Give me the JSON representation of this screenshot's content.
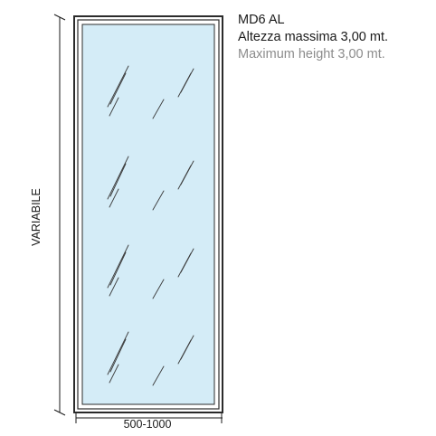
{
  "product": {
    "model": "MD6 AL",
    "max_height_it": "Altezza massima 3,00 mt.",
    "max_height_en": "Maximum height 3,00 mt."
  },
  "dimensions": {
    "height_label": "VARIABILE",
    "width_label": "500-1000"
  },
  "colors": {
    "frame": "#2b2b2b",
    "glass": "#d4ecf7",
    "text": "#1a1a1a",
    "text_secondary": "#8c8c8c"
  }
}
